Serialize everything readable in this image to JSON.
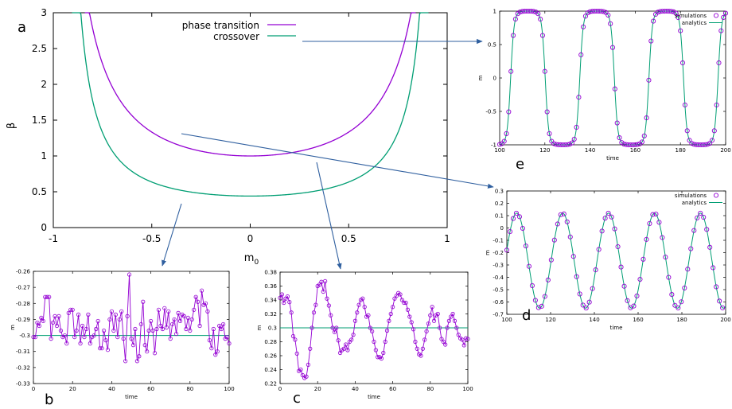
{
  "figure": {
    "panel_labels": [
      "a",
      "b",
      "c",
      "d",
      "e"
    ],
    "colors": {
      "phase": "#9400d3",
      "crossover": "#009e73",
      "sim": "#9400d3",
      "analytic": "#009e73",
      "arrow": "#2f5f9f"
    }
  },
  "chart_data": [
    {
      "id": "a",
      "type": "line",
      "xlabel": "m",
      "xlabel_sub": "0",
      "ylabel": "β",
      "xlim": [
        -1,
        1
      ],
      "ylim": [
        0,
        3
      ],
      "xticks": [
        -1,
        -0.5,
        0,
        0.5,
        1
      ],
      "xtick_labels": [
        "-1",
        "-0.5",
        "0",
        "0.5",
        "1"
      ],
      "yticks": [
        0,
        0.5,
        1,
        1.5,
        2,
        2.5,
        3
      ],
      "ytick_labels": [
        "0",
        "0.5",
        "1",
        "1.5",
        "2",
        "2.5",
        "3"
      ],
      "legend_position": "top-right",
      "series": [
        {
          "name": "phase transition",
          "color": "#9400d3",
          "formula": "beta = 1/(1 - m^2)",
          "x_domain": [
            -0.84,
            0.84
          ]
        },
        {
          "name": "crossover",
          "color": "#009e73",
          "formula": "beta = atanh(|m|)/|m| * 0.44 (approx. sharp rise near |m|=0.95)",
          "x_domain": [
            -0.9,
            0.9
          ]
        }
      ]
    },
    {
      "id": "e",
      "type": "scatter",
      "xlabel": "time",
      "ylabel": "m",
      "xlim": [
        100,
        200
      ],
      "ylim": [
        -1,
        1
      ],
      "xticks": [
        100,
        120,
        140,
        160,
        180,
        200
      ],
      "yticks": [
        -1,
        -0.5,
        0,
        0.5,
        1
      ],
      "xtick_labels": [
        "100",
        "120",
        "140",
        "160",
        "180",
        "200"
      ],
      "ytick_labels": [
        "-1",
        "-0.5",
        "0",
        "0.5",
        "1"
      ],
      "legend": [
        "simulations",
        "analytics"
      ],
      "legend_position": "top-right",
      "signal": {
        "kind": "square-wave",
        "period": 30.6,
        "phase": 112.5,
        "amplitude": 1,
        "offset": 0,
        "sharpness": 3.2,
        "sample_step": 1
      }
    },
    {
      "id": "d",
      "type": "scatter",
      "xlabel": "time",
      "ylabel": "m",
      "xlim": [
        100,
        200
      ],
      "ylim": [
        -0.7,
        0.3
      ],
      "xticks": [
        100,
        120,
        140,
        160,
        180,
        200
      ],
      "yticks": [
        -0.7,
        -0.6,
        -0.5,
        -0.4,
        -0.3,
        -0.2,
        -0.1,
        0,
        0.1,
        0.2,
        0.3
      ],
      "xtick_labels": [
        "100",
        "120",
        "140",
        "160",
        "180",
        "200"
      ],
      "ytick_labels": [
        "-0.7",
        "-0.6",
        "-0.5",
        "-0.4",
        "-0.3",
        "-0.2",
        "-0.1",
        "0",
        "0.1",
        "0.2",
        "0.3"
      ],
      "legend": [
        "simulations",
        "analytics"
      ],
      "legend_position": "top-right",
      "signal": {
        "kind": "sine",
        "period": 21.0,
        "phase": 104.5,
        "amplitude": 0.385,
        "offset": -0.265,
        "sample_step": 1.45
      }
    },
    {
      "id": "b",
      "type": "line",
      "xlabel": "time",
      "ylabel": "m",
      "xlim": [
        0,
        100
      ],
      "ylim": [
        -0.33,
        -0.26
      ],
      "xticks": [
        0,
        20,
        40,
        60,
        80,
        100
      ],
      "yticks": [
        -0.33,
        -0.32,
        -0.31,
        -0.3,
        -0.29,
        -0.28,
        -0.27,
        -0.26
      ],
      "xtick_labels": [
        "0",
        "20",
        "40",
        "60",
        "80",
        "100"
      ],
      "ytick_labels": [
        "-0.33",
        "-0.32",
        "-0.31",
        "-0.3",
        "-0.29",
        "-0.28",
        "-0.27",
        "-0.26"
      ],
      "reference_line": -0.3,
      "x_step": 1,
      "values": [
        -0.301,
        -0.301,
        -0.292,
        -0.294,
        -0.289,
        -0.291,
        -0.276,
        -0.276,
        -0.276,
        -0.302,
        -0.292,
        -0.288,
        -0.294,
        -0.288,
        -0.297,
        -0.301,
        -0.3,
        -0.305,
        -0.286,
        -0.284,
        -0.284,
        -0.301,
        -0.297,
        -0.287,
        -0.305,
        -0.294,
        -0.301,
        -0.296,
        -0.287,
        -0.305,
        -0.301,
        -0.3,
        -0.296,
        -0.291,
        -0.308,
        -0.308,
        -0.297,
        -0.303,
        -0.309,
        -0.29,
        -0.285,
        -0.297,
        -0.287,
        -0.301,
        -0.29,
        -0.285,
        -0.302,
        -0.316,
        -0.288,
        -0.262,
        -0.302,
        -0.306,
        -0.296,
        -0.316,
        -0.313,
        -0.293,
        -0.279,
        -0.306,
        -0.31,
        -0.297,
        -0.291,
        -0.297,
        -0.311,
        -0.296,
        -0.284,
        -0.294,
        -0.296,
        -0.283,
        -0.295,
        -0.285,
        -0.302,
        -0.293,
        -0.29,
        -0.299,
        -0.286,
        -0.291,
        -0.287,
        -0.288,
        -0.296,
        -0.289,
        -0.297,
        -0.29,
        -0.284,
        -0.276,
        -0.279,
        -0.294,
        -0.272,
        -0.281,
        -0.28,
        -0.285,
        -0.303,
        -0.308,
        -0.296,
        -0.312,
        -0.31,
        -0.294,
        -0.296,
        -0.293,
        -0.302,
        -0.301,
        -0.305
      ]
    },
    {
      "id": "c",
      "type": "line",
      "xlabel": "time",
      "ylabel": "m",
      "xlim": [
        0,
        100
      ],
      "ylim": [
        0.22,
        0.38
      ],
      "xticks": [
        0,
        20,
        40,
        60,
        80,
        100
      ],
      "yticks": [
        0.22,
        0.24,
        0.26,
        0.28,
        0.3,
        0.32,
        0.34,
        0.36,
        0.38
      ],
      "xtick_labels": [
        "0",
        "20",
        "40",
        "60",
        "80",
        "100"
      ],
      "ytick_labels": [
        "0.22",
        "0.24",
        "0.26",
        "0.28",
        "0.3",
        "0.32",
        "0.34",
        "0.36",
        "0.38"
      ],
      "reference_line": 0.3,
      "x_step": 1,
      "values": [
        0.343,
        0.348,
        0.336,
        0.342,
        0.345,
        0.337,
        0.322,
        0.288,
        0.283,
        0.263,
        0.238,
        0.24,
        0.232,
        0.228,
        0.23,
        0.247,
        0.27,
        0.3,
        0.322,
        0.333,
        0.36,
        0.362,
        0.366,
        0.352,
        0.367,
        0.342,
        0.332,
        0.318,
        0.3,
        0.294,
        0.3,
        0.282,
        0.264,
        0.268,
        0.27,
        0.276,
        0.268,
        0.28,
        0.283,
        0.29,
        0.31,
        0.322,
        0.333,
        0.34,
        0.342,
        0.33,
        0.316,
        0.318,
        0.3,
        0.295,
        0.28,
        0.268,
        0.258,
        0.258,
        0.256,
        0.264,
        0.28,
        0.296,
        0.31,
        0.32,
        0.33,
        0.342,
        0.346,
        0.35,
        0.348,
        0.34,
        0.336,
        0.336,
        0.326,
        0.316,
        0.308,
        0.298,
        0.28,
        0.27,
        0.262,
        0.26,
        0.27,
        0.283,
        0.295,
        0.306,
        0.318,
        0.33,
        0.31,
        0.318,
        0.32,
        0.3,
        0.284,
        0.28,
        0.276,
        0.3,
        0.31,
        0.316,
        0.32,
        0.31,
        0.3,
        0.29,
        0.285,
        0.283,
        0.275,
        0.285,
        0.284
      ]
    }
  ]
}
